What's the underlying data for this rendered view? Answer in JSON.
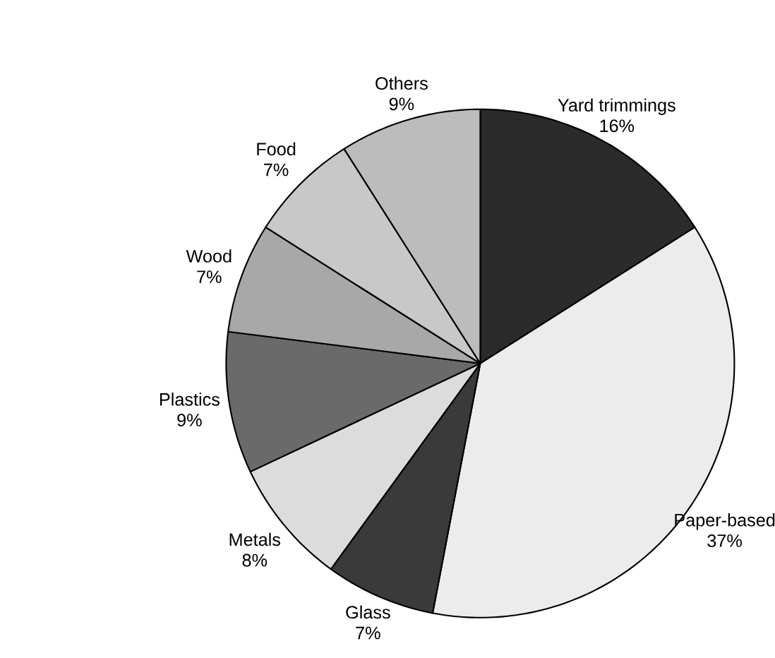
{
  "chart_data": {
    "type": "pie",
    "categories": [
      "Yard trimmings",
      "Paper-based",
      "Glass",
      "Metals",
      "Plastics",
      "Wood",
      "Food",
      "Others"
    ],
    "values": [
      16,
      37,
      7,
      8,
      9,
      7,
      7,
      9
    ],
    "value_labels": [
      "16%",
      "37%",
      "7%",
      "8%",
      "9%",
      "7%",
      "7%",
      "9%"
    ],
    "colors": [
      "#2b2b2b",
      "#ececec",
      "#3a3a3a",
      "#dcdcdc",
      "#6a6a6a",
      "#a8a8a8",
      "#c8c8c8",
      "#bcbcbc"
    ]
  }
}
